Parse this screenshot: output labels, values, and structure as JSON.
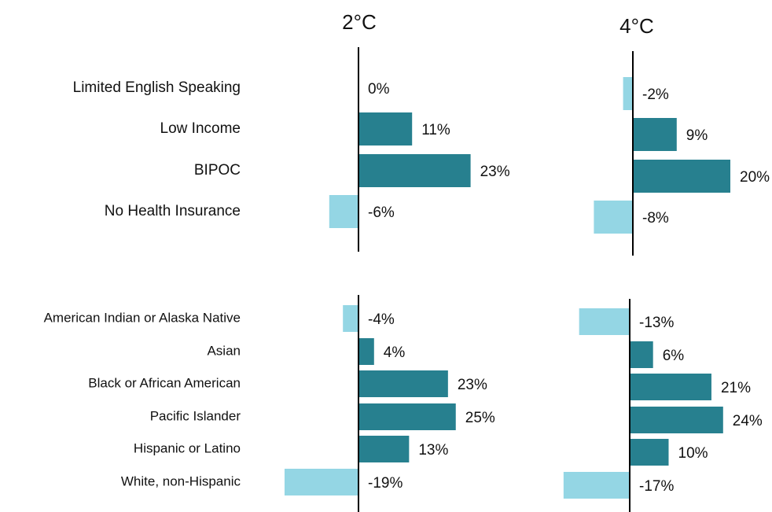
{
  "chart_data": [
    {
      "type": "bar",
      "orientation": "horizontal",
      "categories": [
        "Limited English Speaking",
        "Low Income",
        "BIPOC",
        "No Health Insurance"
      ],
      "colors": {
        "positive": "#27808f",
        "negative": "#94d6e4"
      },
      "series": [
        {
          "name": "2°C",
          "values": [
            0,
            11,
            23,
            -6
          ],
          "value_labels": [
            "0%",
            "11%",
            "23%",
            "-6%"
          ]
        },
        {
          "name": "4°C",
          "values": [
            -2,
            9,
            20,
            -8
          ],
          "value_labels": [
            "-2%",
            "9%",
            "20%",
            "-8%"
          ]
        }
      ]
    },
    {
      "type": "bar",
      "orientation": "horizontal",
      "categories": [
        "American Indian or Alaska Native",
        "Asian",
        "Black or African American",
        "Pacific Islander",
        "Hispanic or Latino",
        "White, non-Hispanic"
      ],
      "colors": {
        "positive": "#27808f",
        "negative": "#94d6e4"
      },
      "series": [
        {
          "values": [
            -4,
            4,
            23,
            25,
            13,
            -19
          ],
          "value_labels": [
            "-4%",
            "4%",
            "23%",
            "25%",
            "13%",
            "-19%"
          ]
        },
        {
          "values": [
            -13,
            6,
            21,
            24,
            10,
            -17
          ],
          "value_labels": [
            "-13%",
            "6%",
            "21%",
            "24%",
            "10%",
            "-17%"
          ]
        }
      ]
    }
  ]
}
